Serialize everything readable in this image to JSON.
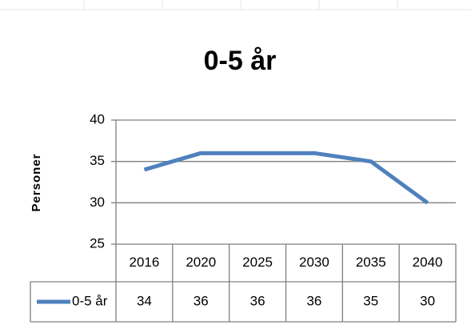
{
  "chart_data": {
    "type": "line",
    "title": "0-5 år",
    "y_label": "Personer",
    "categories": [
      "2016",
      "2020",
      "2025",
      "2030",
      "2035",
      "2040"
    ],
    "series": [
      {
        "name": "0-5 år",
        "color": "#4f81bd",
        "values": [
          34,
          36,
          36,
          36,
          35,
          30
        ]
      }
    ],
    "ylim": [
      25,
      40
    ],
    "yticks": [
      25,
      30,
      35,
      40
    ],
    "grid": true,
    "data_table": true
  }
}
